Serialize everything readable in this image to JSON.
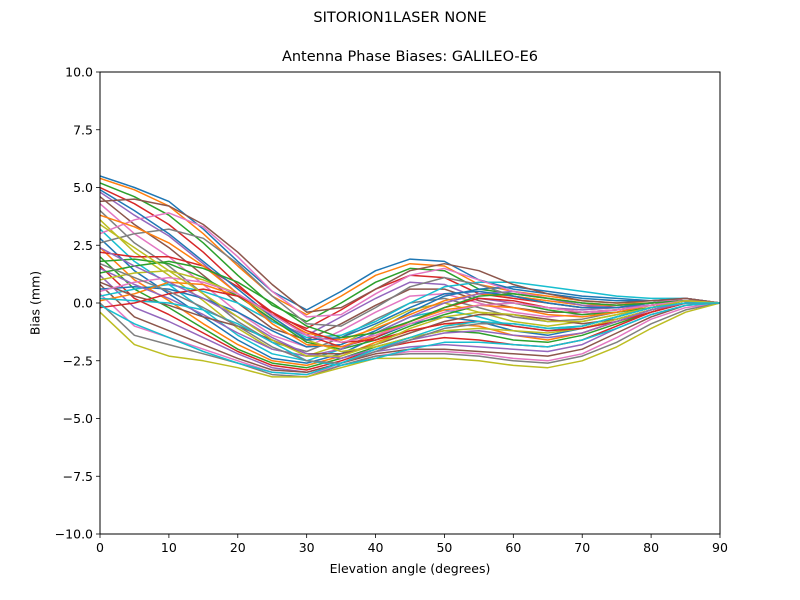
{
  "figure": {
    "suptitle": "SITORION1LASER  NONE"
  },
  "chart_data": {
    "type": "line",
    "title": "Antenna Phase Biases: GALILEO-E6",
    "xlabel": "Elevation angle (degrees)",
    "ylabel": "Bias (mm)",
    "xlim": [
      0,
      90
    ],
    "ylim": [
      -10,
      10
    ],
    "xticks": [
      0,
      10,
      20,
      30,
      40,
      50,
      60,
      70,
      80,
      90
    ],
    "yticks": [
      -10.0,
      -7.5,
      -5.0,
      -2.5,
      0.0,
      2.5,
      5.0,
      7.5,
      10.0
    ],
    "ytick_labels": [
      "−10.0",
      "−7.5",
      "−5.0",
      "−2.5",
      "0.0",
      "2.5",
      "5.0",
      "7.5",
      "10.0"
    ],
    "xtick_labels": [
      "0",
      "10",
      "20",
      "30",
      "40",
      "50",
      "60",
      "70",
      "80",
      "90"
    ],
    "grid": false,
    "legend": "none",
    "x": [
      0,
      5,
      10,
      15,
      20,
      25,
      30,
      35,
      40,
      45,
      50,
      55,
      60,
      65,
      70,
      75,
      80,
      85,
      90
    ],
    "palette": [
      "#1f77b4",
      "#ff7f0e",
      "#2ca02c",
      "#d62728",
      "#9467bd",
      "#8c564b",
      "#e377c2",
      "#7f7f7f",
      "#bcbd22",
      "#17becf"
    ],
    "series": [
      {
        "values": [
          5.5,
          5.0,
          4.4,
          3.2,
          1.8,
          0.5,
          -0.3,
          0.5,
          1.4,
          1.9,
          1.8,
          1.0,
          0.6,
          0.4,
          0.2,
          0.1,
          0.1,
          0.2,
          0.0
        ]
      },
      {
        "values": [
          5.4,
          4.9,
          4.2,
          3.0,
          1.6,
          0.3,
          -0.5,
          0.3,
          1.2,
          1.7,
          1.6,
          0.8,
          0.5,
          0.3,
          0.1,
          0.0,
          0.0,
          0.2,
          0.0
        ]
      },
      {
        "values": [
          5.2,
          4.6,
          3.8,
          2.6,
          1.2,
          -0.1,
          -0.8,
          0.0,
          0.9,
          1.5,
          1.4,
          0.6,
          0.4,
          0.2,
          0.0,
          -0.1,
          0.0,
          0.2,
          0.0
        ]
      },
      {
        "values": [
          5.0,
          4.3,
          3.4,
          2.2,
          0.8,
          -0.5,
          -1.1,
          -0.3,
          0.6,
          1.2,
          1.1,
          0.4,
          0.2,
          0.0,
          -0.2,
          -0.1,
          0.0,
          0.2,
          0.0
        ]
      },
      {
        "values": [
          4.8,
          3.8,
          2.9,
          1.7,
          0.4,
          -0.8,
          -1.4,
          -0.6,
          0.2,
          0.9,
          0.8,
          0.2,
          0.0,
          -0.2,
          -0.3,
          -0.2,
          0.0,
          0.1,
          0.0
        ]
      },
      {
        "values": [
          4.6,
          3.4,
          2.4,
          1.2,
          0.0,
          -1.1,
          -1.6,
          -0.9,
          -0.1,
          0.6,
          0.6,
          0.1,
          -0.2,
          -0.4,
          -0.4,
          -0.3,
          -0.1,
          0.1,
          0.0
        ]
      },
      {
        "values": [
          4.3,
          3.0,
          2.0,
          0.8,
          -0.4,
          -1.4,
          -1.9,
          -1.2,
          -0.4,
          0.3,
          0.4,
          0.0,
          -0.4,
          -0.6,
          -0.5,
          -0.3,
          -0.1,
          0.1,
          0.0
        ]
      },
      {
        "values": [
          4.0,
          2.6,
          1.6,
          0.4,
          -0.8,
          -1.7,
          -2.1,
          -1.5,
          -0.7,
          0.0,
          0.2,
          -0.2,
          -0.6,
          -0.8,
          -0.7,
          -0.4,
          -0.1,
          0.1,
          0.0
        ]
      },
      {
        "values": [
          3.6,
          2.2,
          1.2,
          0.1,
          -1.1,
          -2.0,
          -2.3,
          -1.8,
          -1.0,
          -0.3,
          0.0,
          -0.4,
          -0.8,
          -1.0,
          -0.8,
          -0.5,
          -0.2,
          0.1,
          0.0
        ]
      },
      {
        "values": [
          3.2,
          1.8,
          0.8,
          -0.3,
          -1.4,
          -2.2,
          -2.5,
          -2.0,
          -1.3,
          -0.6,
          -0.3,
          -0.6,
          -1.0,
          -1.2,
          -1.0,
          -0.6,
          -0.2,
          0.1,
          0.0
        ]
      },
      {
        "values": [
          2.8,
          1.4,
          0.4,
          -0.6,
          -1.6,
          -2.4,
          -2.6,
          -2.2,
          -1.5,
          -0.9,
          -0.6,
          -0.8,
          -1.2,
          -1.4,
          -1.1,
          -0.7,
          -0.3,
          0.0,
          0.0
        ]
      },
      {
        "values": [
          2.4,
          1.0,
          0.1,
          -0.9,
          -1.8,
          -2.5,
          -2.7,
          -2.3,
          -1.7,
          -1.2,
          -0.9,
          -1.0,
          -1.4,
          -1.6,
          -1.3,
          -0.8,
          -0.3,
          0.0,
          0.0
        ]
      },
      {
        "values": [
          2.0,
          0.6,
          -0.2,
          -1.1,
          -2.0,
          -2.6,
          -2.8,
          -2.4,
          -1.9,
          -1.5,
          -1.2,
          -1.3,
          -1.6,
          -1.7,
          -1.4,
          -0.9,
          -0.4,
          0.0,
          0.0
        ]
      },
      {
        "values": [
          1.6,
          0.2,
          -0.5,
          -1.3,
          -2.1,
          -2.7,
          -2.9,
          -2.5,
          -2.0,
          -1.7,
          -1.5,
          -1.6,
          -1.8,
          -1.9,
          -1.6,
          -1.0,
          -0.4,
          0.0,
          0.0
        ]
      },
      {
        "values": [
          1.2,
          -0.2,
          -0.8,
          -1.5,
          -2.2,
          -2.8,
          -3.0,
          -2.6,
          -2.1,
          -1.9,
          -1.8,
          -1.9,
          -2.0,
          -2.1,
          -1.8,
          -1.1,
          -0.5,
          -0.1,
          0.0
        ]
      },
      {
        "values": [
          0.8,
          -0.6,
          -1.2,
          -1.8,
          -2.4,
          -2.9,
          -3.0,
          -2.6,
          -2.2,
          -2.0,
          -2.0,
          -2.1,
          -2.2,
          -2.3,
          -2.0,
          -1.3,
          -0.6,
          -0.1,
          0.0
        ]
      },
      {
        "values": [
          0.4,
          -1.0,
          -1.5,
          -2.0,
          -2.5,
          -3.0,
          -3.1,
          -2.7,
          -2.3,
          -2.1,
          -2.1,
          -2.2,
          -2.4,
          -2.5,
          -2.2,
          -1.5,
          -0.7,
          -0.2,
          0.0
        ]
      },
      {
        "values": [
          0.0,
          -1.4,
          -1.8,
          -2.2,
          -2.6,
          -3.1,
          -3.2,
          -2.7,
          -2.3,
          -2.2,
          -2.2,
          -2.3,
          -2.5,
          -2.6,
          -2.3,
          -1.7,
          -0.9,
          -0.3,
          0.0
        ]
      },
      {
        "values": [
          -0.4,
          -1.8,
          -2.3,
          -2.5,
          -2.8,
          -3.2,
          -3.2,
          -2.8,
          -2.4,
          -2.4,
          -2.4,
          -2.5,
          -2.7,
          -2.8,
          -2.5,
          -1.9,
          -1.1,
          -0.4,
          0.0
        ]
      },
      {
        "values": [
          0.3,
          0.6,
          0.8,
          0.5,
          0.0,
          -0.8,
          -1.5,
          -1.4,
          -0.8,
          0.0,
          0.7,
          0.9,
          0.9,
          0.7,
          0.5,
          0.3,
          0.2,
          0.2,
          0.0
        ]
      },
      {
        "values": [
          0.6,
          0.7,
          0.6,
          0.2,
          -0.4,
          -1.2,
          -1.9,
          -1.8,
          -1.2,
          -0.4,
          0.3,
          0.6,
          0.7,
          0.5,
          0.3,
          0.2,
          0.1,
          0.2,
          0.0
        ]
      },
      {
        "values": [
          0.1,
          0.4,
          0.9,
          0.8,
          0.3,
          -0.5,
          -1.3,
          -1.6,
          -1.1,
          -0.5,
          0.1,
          0.4,
          0.3,
          0.1,
          -0.1,
          -0.1,
          0.0,
          0.1,
          0.0
        ]
      },
      {
        "values": [
          1.8,
          1.9,
          1.7,
          1.1,
          0.3,
          -0.7,
          -1.7,
          -2.0,
          -1.6,
          -1.0,
          -0.5,
          -0.1,
          0.0,
          -0.3,
          -0.5,
          -0.4,
          -0.2,
          0.1,
          0.0
        ]
      },
      {
        "values": [
          2.2,
          2.0,
          2.0,
          1.6,
          0.7,
          -0.4,
          -1.4,
          -1.9,
          -1.5,
          -0.8,
          -0.2,
          0.2,
          0.1,
          -0.2,
          -0.4,
          -0.3,
          -0.1,
          0.1,
          0.0
        ]
      },
      {
        "values": [
          1.5,
          0.8,
          0.2,
          -0.5,
          -1.3,
          -2.0,
          -2.3,
          -2.0,
          -1.3,
          -0.6,
          0.0,
          0.4,
          0.5,
          0.2,
          -0.1,
          -0.2,
          -0.1,
          0.1,
          0.0
        ]
      },
      {
        "values": [
          0.9,
          0.3,
          -0.1,
          -0.6,
          -1.0,
          -1.6,
          -2.2,
          -2.2,
          -1.8,
          -1.3,
          -0.8,
          -0.5,
          -0.5,
          -0.7,
          -0.9,
          -0.7,
          -0.3,
          0.0,
          0.0
        ]
      },
      {
        "values": [
          3.0,
          3.6,
          3.9,
          3.3,
          2.0,
          0.5,
          -0.6,
          -0.5,
          0.4,
          1.2,
          1.5,
          1.0,
          0.5,
          0.2,
          0.0,
          -0.1,
          0.0,
          0.2,
          0.0
        ]
      },
      {
        "values": [
          2.6,
          3.0,
          3.2,
          2.8,
          1.7,
          0.3,
          -0.9,
          -1.0,
          -0.2,
          0.7,
          1.1,
          0.8,
          0.3,
          0.0,
          -0.2,
          -0.2,
          0.0,
          0.1,
          0.0
        ]
      },
      {
        "values": [
          1.0,
          1.3,
          1.4,
          1.0,
          0.4,
          -0.6,
          -1.6,
          -2.1,
          -1.9,
          -1.5,
          -1.2,
          -1.1,
          -1.2,
          -1.3,
          -1.1,
          -0.7,
          -0.3,
          0.0,
          0.0
        ]
      },
      {
        "values": [
          0.2,
          0.1,
          0.0,
          -0.3,
          -0.9,
          -1.7,
          -2.5,
          -2.7,
          -2.4,
          -2.0,
          -1.7,
          -1.7,
          -1.8,
          -1.9,
          -1.6,
          -1.1,
          -0.5,
          -0.1,
          0.0
        ]
      },
      {
        "values": [
          4.9,
          4.0,
          3.0,
          1.8,
          0.6,
          -0.6,
          -1.6,
          -1.5,
          -0.9,
          -0.2,
          0.4,
          0.5,
          0.3,
          0.0,
          -0.2,
          -0.2,
          0.0,
          0.1,
          0.0
        ]
      },
      {
        "values": [
          3.8,
          3.3,
          2.6,
          1.6,
          0.4,
          -0.9,
          -1.8,
          -1.9,
          -1.4,
          -0.8,
          -0.3,
          -0.1,
          -0.2,
          -0.5,
          -0.6,
          -0.4,
          -0.1,
          0.1,
          0.0
        ]
      },
      {
        "values": [
          1.3,
          1.6,
          1.8,
          1.5,
          0.9,
          0.0,
          -1.0,
          -1.5,
          -1.3,
          -0.8,
          -0.2,
          0.3,
          0.4,
          0.2,
          0.0,
          -0.1,
          0.0,
          0.1,
          0.0
        ]
      },
      {
        "values": [
          -0.2,
          0.0,
          0.4,
          0.6,
          0.3,
          -0.4,
          -1.2,
          -1.7,
          -1.6,
          -1.2,
          -0.9,
          -0.8,
          -1.0,
          -1.2,
          -1.1,
          -0.8,
          -0.4,
          0.0,
          0.0
        ]
      },
      {
        "values": [
          2.4,
          1.6,
          0.9,
          0.2,
          -0.6,
          -1.5,
          -2.2,
          -2.4,
          -2.0,
          -1.6,
          -1.3,
          -1.2,
          -1.4,
          -1.5,
          -1.3,
          -0.8,
          -0.3,
          0.0,
          0.0
        ]
      },
      {
        "values": [
          4.4,
          4.5,
          4.2,
          3.4,
          2.2,
          0.8,
          -0.4,
          -0.2,
          0.6,
          1.4,
          1.7,
          1.4,
          0.8,
          0.4,
          0.1,
          0.0,
          0.1,
          0.2,
          0.0
        ]
      },
      {
        "values": [
          0.5,
          0.9,
          1.1,
          0.9,
          0.4,
          -0.5,
          -1.4,
          -1.7,
          -1.4,
          -0.9,
          -0.4,
          -0.1,
          0.0,
          -0.2,
          -0.4,
          -0.3,
          -0.1,
          0.1,
          0.0
        ]
      },
      {
        "values": [
          1.7,
          1.1,
          0.5,
          -0.2,
          -1.0,
          -1.9,
          -2.5,
          -2.6,
          -2.1,
          -1.6,
          -1.1,
          -0.9,
          -0.9,
          -1.1,
          -1.0,
          -0.6,
          -0.2,
          0.0,
          0.0
        ]
      },
      {
        "values": [
          3.4,
          2.4,
          1.4,
          0.4,
          -0.6,
          -1.6,
          -2.3,
          -2.3,
          -1.8,
          -1.1,
          -0.6,
          -0.4,
          -0.5,
          -0.8,
          -0.8,
          -0.5,
          -0.2,
          0.1,
          0.0
        ]
      },
      {
        "values": [
          -0.1,
          -0.9,
          -1.5,
          -2.1,
          -2.6,
          -3.0,
          -3.1,
          -2.6,
          -2.0,
          -1.5,
          -1.0,
          -0.8,
          -0.9,
          -1.1,
          -1.0,
          -0.6,
          -0.2,
          0.0,
          0.0
        ]
      }
    ]
  }
}
